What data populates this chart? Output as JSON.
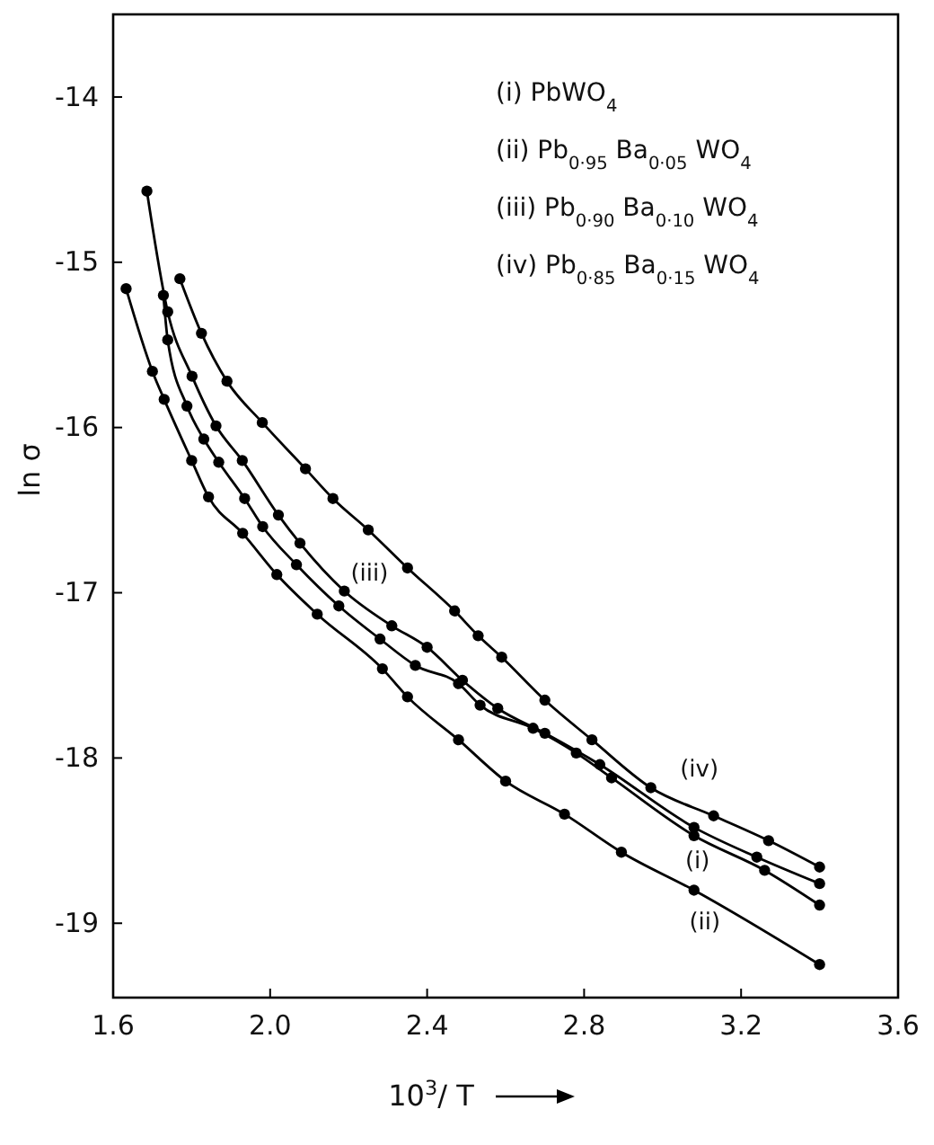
{
  "chart_data": {
    "type": "line",
    "xlabel": "10$^{3}$/ T",
    "ylabel": "ln σ",
    "xlim": [
      1.6,
      3.6
    ],
    "ylim": [
      -19.45,
      -13.5
    ],
    "xticks": [
      {
        "value": 1.6,
        "label": "1.6"
      },
      {
        "value": 2.0,
        "label": "2.0"
      },
      {
        "value": 2.4,
        "label": "2.4"
      },
      {
        "value": 2.8,
        "label": "2.8"
      },
      {
        "value": 3.2,
        "label": "3.2"
      },
      {
        "value": 3.6,
        "label": "3.6"
      }
    ],
    "yticks": [
      -14,
      -15,
      -16,
      -17,
      -18,
      -19
    ],
    "grid": false,
    "marker": "circle",
    "line_style": "solid",
    "series": [
      {
        "name": "(i)",
        "color": "#000000",
        "x": [
          1.728,
          1.739,
          1.788,
          1.831,
          1.869,
          1.935,
          1.981,
          2.067,
          2.175,
          2.28,
          2.37,
          2.48,
          2.535,
          2.67,
          2.78,
          2.87,
          3.08,
          3.26,
          3.4
        ],
        "values": [
          -15.2,
          -15.47,
          -15.87,
          -16.07,
          -16.21,
          -16.43,
          -16.6,
          -16.83,
          -17.08,
          -17.28,
          -17.44,
          -17.55,
          -17.68,
          -17.82,
          -17.97,
          -18.12,
          -18.47,
          -18.68,
          -18.89
        ]
      },
      {
        "name": "(ii)",
        "color": "#000000",
        "x": [
          1.633,
          1.7,
          1.73,
          1.8,
          1.843,
          1.93,
          2.017,
          2.12,
          2.286,
          2.35,
          2.48,
          2.6,
          2.75,
          2.895,
          3.08,
          3.4
        ],
        "values": [
          -15.16,
          -15.66,
          -15.83,
          -16.2,
          -16.42,
          -16.64,
          -16.89,
          -17.13,
          -17.46,
          -17.63,
          -17.89,
          -18.14,
          -18.34,
          -18.57,
          -18.8,
          -19.25
        ]
      },
      {
        "name": "(iii)",
        "color": "#000000",
        "x": [
          1.686,
          1.739,
          1.801,
          1.862,
          1.929,
          2.021,
          2.076,
          2.189,
          2.31,
          2.4,
          2.49,
          2.58,
          2.7,
          2.84,
          3.08,
          3.24,
          3.4
        ],
        "values": [
          -14.57,
          -15.3,
          -15.69,
          -15.99,
          -16.2,
          -16.53,
          -16.7,
          -16.99,
          -17.2,
          -17.33,
          -17.53,
          -17.7,
          -17.85,
          -18.04,
          -18.42,
          -18.6,
          -18.76
        ]
      },
      {
        "name": "(iv)",
        "color": "#000000",
        "x": [
          1.77,
          1.825,
          1.89,
          1.98,
          2.09,
          2.16,
          2.25,
          2.35,
          2.47,
          2.53,
          2.59,
          2.7,
          2.82,
          2.97,
          3.13,
          3.27,
          3.4
        ],
        "values": [
          -15.1,
          -15.43,
          -15.72,
          -15.97,
          -16.25,
          -16.43,
          -16.62,
          -16.85,
          -17.11,
          -17.26,
          -17.39,
          -17.65,
          -17.89,
          -18.18,
          -18.35,
          -18.5,
          -18.66
        ]
      }
    ],
    "annotations": [
      "(i)  PbWO$_{4}$",
      "(ii)  Pb$_{0·95}$ Ba$_{0·05}$ WO$_{4}$",
      "(iii)  Pb$_{0·90}$ Ba$_{0·10}$ WO$_{4}$",
      "(iv)  Pb$_{0·85}$ Ba$_{0·15}$ WO$_{4}$"
    ]
  }
}
